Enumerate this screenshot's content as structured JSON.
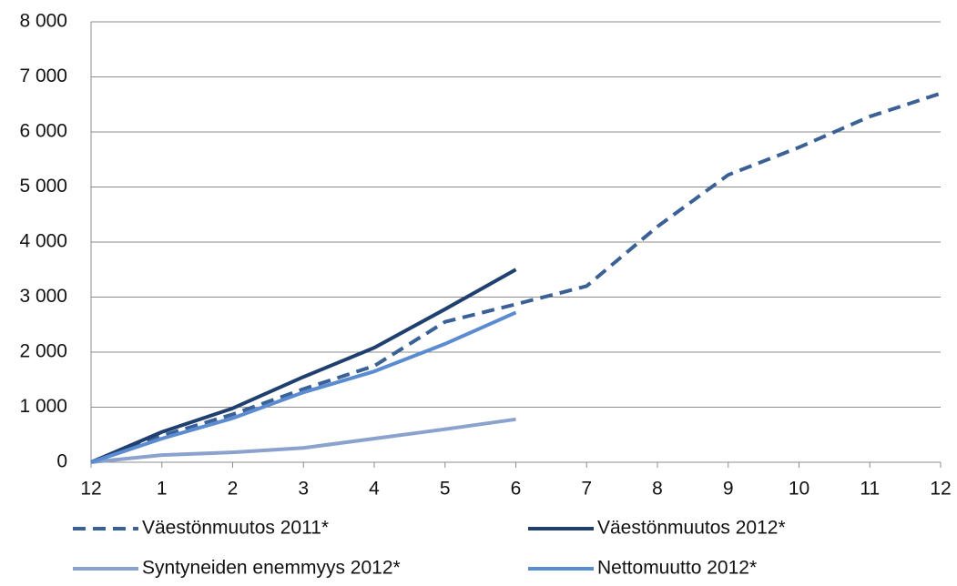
{
  "chart_data": {
    "type": "line",
    "categories": [
      "12",
      "1",
      "2",
      "3",
      "4",
      "5",
      "6",
      "7",
      "8",
      "9",
      "10",
      "11",
      "12"
    ],
    "series": [
      {
        "name": "Väestönmuutos 2011*",
        "color": "#3a6096",
        "dashed": true,
        "values": [
          0,
          480,
          870,
          1330,
          1750,
          2550,
          2870,
          3200,
          4280,
          5220,
          5720,
          6280,
          6700
        ]
      },
      {
        "name": "Väestönmuutos 2012*",
        "color": "#1f3f6e",
        "dashed": false,
        "values": [
          0,
          550,
          980,
          1550,
          2080,
          2780,
          3500,
          null,
          null,
          null,
          null,
          null,
          null
        ]
      },
      {
        "name": "Syntyneiden enemmyys 2012*",
        "color": "#8aa2cd",
        "dashed": false,
        "values": [
          0,
          130,
          180,
          260,
          430,
          600,
          780,
          null,
          null,
          null,
          null,
          null,
          null
        ]
      },
      {
        "name": "Nettomuutto 2012*",
        "color": "#5b8bd0",
        "dashed": false,
        "values": [
          0,
          430,
          800,
          1270,
          1650,
          2150,
          2720,
          null,
          null,
          null,
          null,
          null,
          null
        ]
      }
    ],
    "ylim": [
      0,
      8000
    ],
    "yticks": [
      0,
      {
        "value": 1000,
        "label": "1 000"
      },
      {
        "value": 2000,
        "label": "2 000"
      },
      {
        "value": 3000,
        "label": "3 000"
      },
      {
        "value": 4000,
        "label": "4 000"
      },
      {
        "value": 5000,
        "label": "5 000"
      },
      {
        "value": 6000,
        "label": "6 000"
      },
      {
        "value": 7000,
        "label": "7 000"
      },
      {
        "value": 8000,
        "label": "8 000"
      }
    ],
    "grid": true
  }
}
